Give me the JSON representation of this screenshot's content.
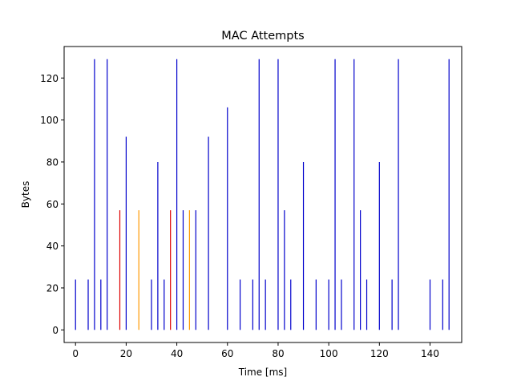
{
  "chart_data": {
    "type": "stem",
    "title": "MAC Attempts",
    "xlabel": "Time [ms]",
    "ylabel": "Bytes",
    "xlim": [
      -4.5,
      152.5
    ],
    "ylim": [
      -6,
      135
    ],
    "xticks": [
      0,
      20,
      40,
      60,
      80,
      100,
      120,
      140
    ],
    "yticks": [
      0,
      20,
      40,
      60,
      80,
      100,
      120
    ],
    "grid": false,
    "colors": {
      "blue": "#0000cc",
      "red": "#dd0000",
      "orange": "#ff9900"
    },
    "series": [
      {
        "color_key": "blue",
        "points": [
          [
            0,
            24
          ],
          [
            5,
            24
          ],
          [
            7.5,
            129
          ],
          [
            10,
            24
          ],
          [
            12.5,
            129
          ],
          [
            20,
            92
          ],
          [
            30,
            24
          ],
          [
            32.5,
            80
          ],
          [
            35,
            24
          ],
          [
            40,
            129
          ],
          [
            42.5,
            57
          ],
          [
            47.5,
            57
          ],
          [
            52.5,
            92
          ],
          [
            60,
            106
          ],
          [
            65,
            24
          ],
          [
            70,
            24
          ],
          [
            72.5,
            129
          ],
          [
            75,
            24
          ],
          [
            80,
            129
          ],
          [
            82.5,
            57
          ],
          [
            85,
            24
          ],
          [
            90,
            80
          ],
          [
            95,
            24
          ],
          [
            100,
            24
          ],
          [
            102.5,
            129
          ],
          [
            105,
            24
          ],
          [
            110,
            129
          ],
          [
            112.5,
            57
          ],
          [
            115,
            24
          ],
          [
            120,
            80
          ],
          [
            125,
            24
          ],
          [
            127.5,
            129
          ],
          [
            140,
            24
          ],
          [
            145,
            24
          ],
          [
            147.5,
            129
          ]
        ]
      },
      {
        "color_key": "red",
        "points": [
          [
            17.5,
            57
          ],
          [
            37.5,
            57
          ]
        ]
      },
      {
        "color_key": "orange",
        "points": [
          [
            25,
            57
          ],
          [
            45,
            57
          ]
        ]
      }
    ]
  }
}
